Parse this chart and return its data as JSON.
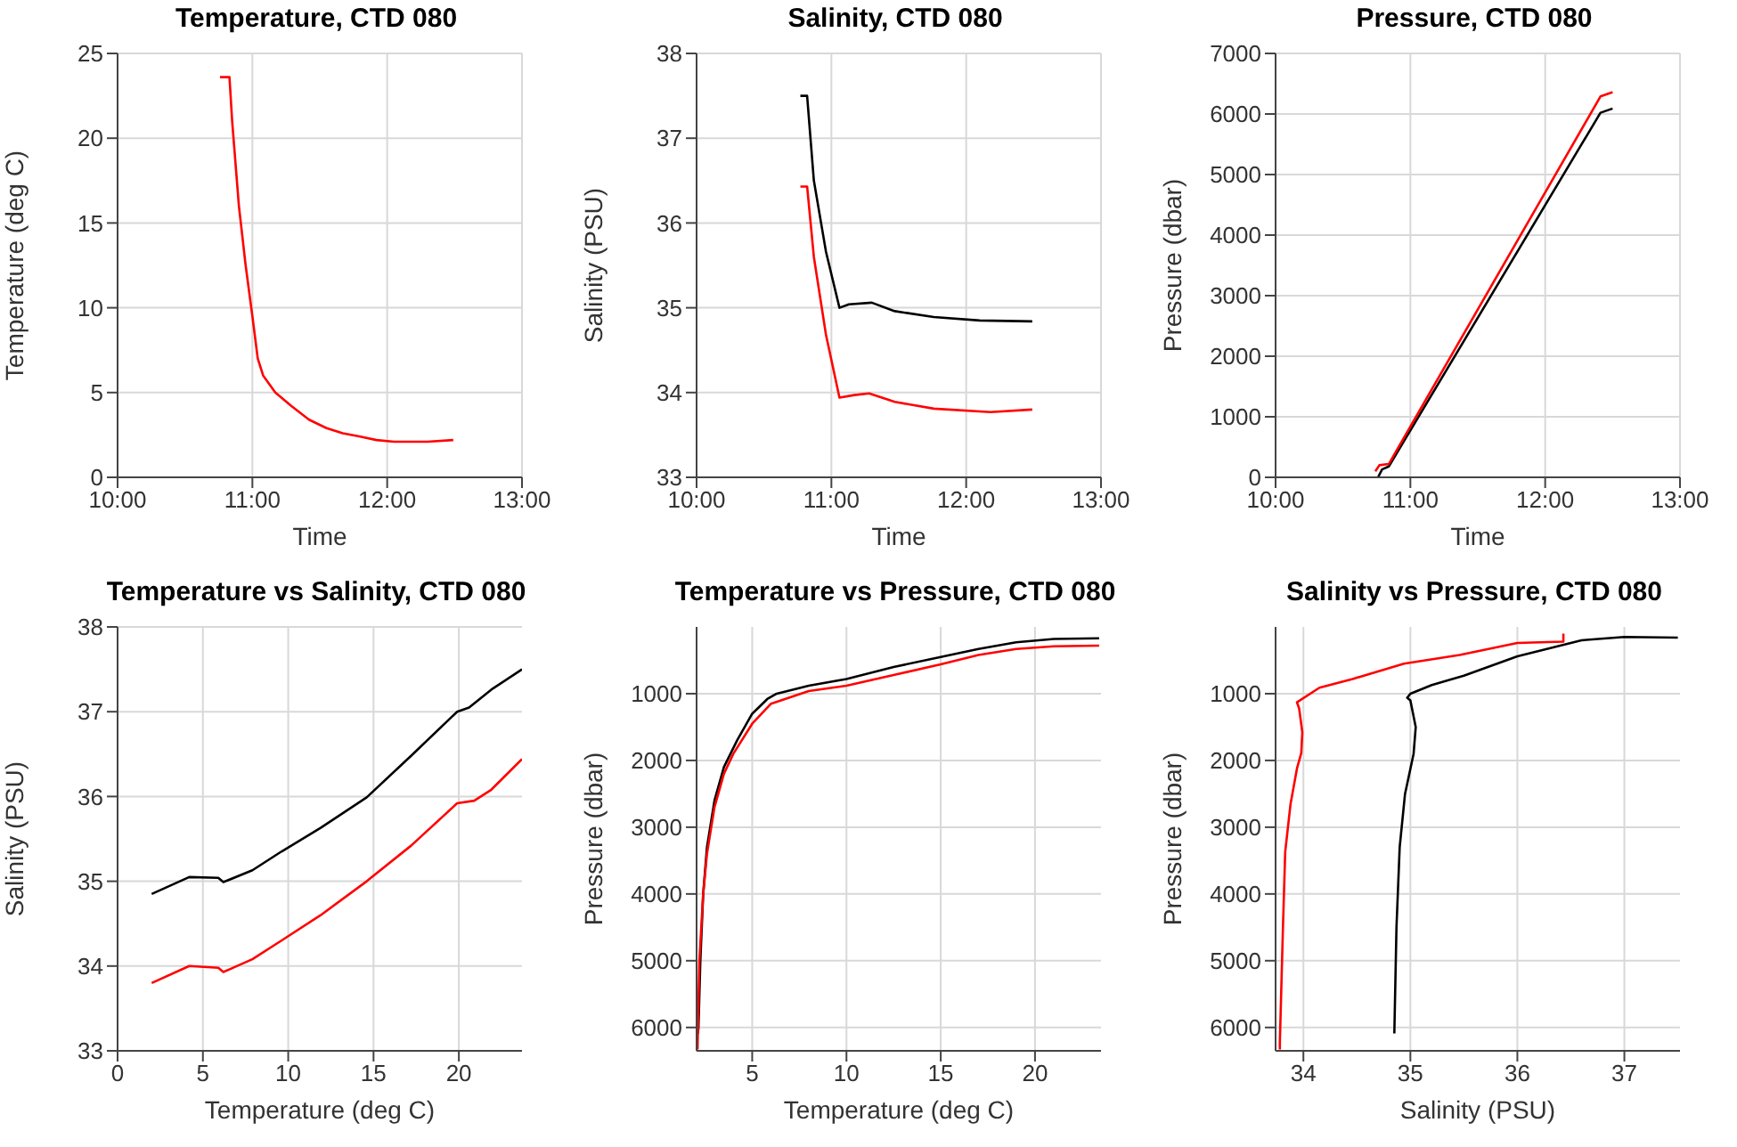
{
  "chart_data": [
    {
      "type": "line",
      "title": "Temperature, CTD 080",
      "xlabel": "Time",
      "ylabel": "Temperature (deg C)",
      "xlim": [
        10,
        13
      ],
      "xticks": [
        {
          "value": 10,
          "label": "10:00"
        },
        {
          "value": 11,
          "label": "11:00"
        },
        {
          "value": 12,
          "label": "12:00"
        },
        {
          "value": 13,
          "label": "13:00"
        }
      ],
      "ylim": [
        0,
        25
      ],
      "yticks": [
        0,
        5,
        10,
        15,
        20,
        25
      ],
      "grid": true,
      "series": [
        {
          "color": "#ff0000",
          "x": [
            10.76,
            10.83,
            10.85,
            10.9,
            10.95,
            11.0,
            11.04,
            11.08,
            11.17,
            11.29,
            11.42,
            11.55,
            11.67,
            11.8,
            11.92,
            12.05,
            12.18,
            12.3,
            12.49
          ],
          "values": [
            23.6,
            23.6,
            21,
            16,
            12.5,
            9.5,
            7,
            6,
            5,
            4.2,
            3.4,
            2.9,
            2.6,
            2.4,
            2.2,
            2.1,
            2.1,
            2.1,
            2.2
          ]
        }
      ]
    },
    {
      "type": "line",
      "title": "Salinity, CTD 080",
      "xlabel": "Time",
      "ylabel": "Salinity (PSU)",
      "xlim": [
        10,
        13
      ],
      "xticks": [
        {
          "value": 10,
          "label": "10:00"
        },
        {
          "value": 11,
          "label": "11:00"
        },
        {
          "value": 12,
          "label": "12:00"
        },
        {
          "value": 13,
          "label": "13:00"
        }
      ],
      "ylim": [
        33,
        38
      ],
      "yticks": [
        33,
        34,
        35,
        36,
        37,
        38
      ],
      "grid": true,
      "series": [
        {
          "color": "#000000",
          "x": [
            10.77,
            10.82,
            10.87,
            10.96,
            11.06,
            11.13,
            11.3,
            11.47,
            11.76,
            12.1,
            12.49
          ],
          "values": [
            37.5,
            37.5,
            36.5,
            35.66,
            35.0,
            35.04,
            35.06,
            34.96,
            34.89,
            34.85,
            34.84
          ]
        },
        {
          "color": "#ff0000",
          "x": [
            10.77,
            10.82,
            10.87,
            10.96,
            11.06,
            11.17,
            11.28,
            11.47,
            11.76,
            12.18,
            12.49
          ],
          "values": [
            36.43,
            36.43,
            35.6,
            34.68,
            33.94,
            33.97,
            33.99,
            33.89,
            33.81,
            33.77,
            33.8
          ]
        }
      ]
    },
    {
      "type": "line",
      "title": "Pressure, CTD 080",
      "xlabel": "Time",
      "ylabel": "Pressure (dbar)",
      "xlim": [
        10,
        13
      ],
      "xticks": [
        {
          "value": 10,
          "label": "10:00"
        },
        {
          "value": 11,
          "label": "11:00"
        },
        {
          "value": 12,
          "label": "12:00"
        },
        {
          "value": 13,
          "label": "13:00"
        }
      ],
      "ylim": [
        0,
        7000
      ],
      "yticks": [
        0,
        1000,
        2000,
        3000,
        4000,
        5000,
        6000,
        7000
      ],
      "grid": true,
      "series": [
        {
          "color": "#000000",
          "x": [
            10.76,
            10.79,
            10.84,
            12.41,
            12.5
          ],
          "values": [
            0,
            130,
            180,
            6020,
            6090
          ]
        },
        {
          "color": "#ff0000",
          "x": [
            10.74,
            10.77,
            10.84,
            12.41,
            12.5
          ],
          "values": [
            100,
            200,
            220,
            6290,
            6360
          ]
        }
      ]
    },
    {
      "type": "line",
      "title": "Temperature vs Salinity, CTD 080",
      "xlabel": "Temperature (deg C)",
      "ylabel": "Salinity (PSU)",
      "xlim": [
        0,
        23.7
      ],
      "xticks": [
        0,
        5,
        10,
        15,
        20
      ],
      "ylim": [
        33,
        38
      ],
      "yticks": [
        33,
        34,
        35,
        36,
        37,
        38
      ],
      "grid": true,
      "series": [
        {
          "color": "#000000",
          "x": [
            2,
            4.2,
            5.9,
            6.2,
            7.9,
            9.6,
            11.9,
            14.6,
            17.2,
            19.9,
            20.6,
            21.9,
            23.7
          ],
          "values": [
            34.85,
            35.05,
            35.04,
            34.99,
            35.13,
            35.35,
            35.63,
            35.99,
            36.48,
            37.0,
            37.05,
            37.26,
            37.5
          ]
        },
        {
          "color": "#ff0000",
          "x": [
            2,
            4.2,
            5.9,
            6.2,
            7.9,
            9.6,
            11.9,
            14.6,
            17.2,
            19.9,
            20.9,
            21.9,
            23.7
          ],
          "values": [
            33.8,
            34.0,
            33.98,
            33.93,
            34.08,
            34.3,
            34.6,
            35.0,
            35.42,
            35.92,
            35.95,
            36.08,
            36.44
          ]
        }
      ]
    },
    {
      "type": "line",
      "title": "Temperature vs Pressure, CTD 080",
      "xlabel": "Temperature (deg C)",
      "ylabel": "Pressure (dbar)",
      "xlim": [
        2.05,
        23.5
      ],
      "xticks": [
        5,
        10,
        15,
        20
      ],
      "ylim": [
        6350,
        0
      ],
      "yticks": [
        1000,
        2000,
        3000,
        4000,
        5000,
        6000
      ],
      "grid": true,
      "series": [
        {
          "color": "#000000",
          "x": [
            23.4,
            21,
            19,
            17,
            15,
            12.5,
            10,
            8,
            6.3,
            5.8,
            5,
            4.2,
            3.5,
            3,
            2.6,
            2.4,
            2.25,
            2.15,
            2.12
          ],
          "values": [
            170,
            180,
            230,
            330,
            450,
            600,
            780,
            880,
            1000,
            1080,
            1300,
            1700,
            2100,
            2600,
            3300,
            4000,
            5000,
            6000,
            6090
          ]
        },
        {
          "color": "#ff0000",
          "x": [
            23.4,
            21,
            19,
            17,
            15,
            12.5,
            10,
            8,
            6,
            5,
            4,
            3.5,
            3,
            2.6,
            2.4,
            2.2,
            2.12,
            2.1
          ],
          "values": [
            280,
            290,
            330,
            420,
            560,
            720,
            880,
            960,
            1150,
            1450,
            1900,
            2200,
            2700,
            3400,
            4000,
            5000,
            6000,
            6330
          ]
        }
      ]
    },
    {
      "type": "line",
      "title": "Salinity vs Pressure, CTD 080",
      "xlabel": "Salinity (PSU)",
      "ylabel": "Pressure (dbar)",
      "xlim": [
        33.74,
        37.52
      ],
      "xticks": [
        34,
        35,
        36,
        37
      ],
      "ylim": [
        6350,
        0
      ],
      "yticks": [
        1000,
        2000,
        3000,
        4000,
        5000,
        6000
      ],
      "grid": true,
      "series": [
        {
          "color": "#000000",
          "x": [
            37.5,
            37.0,
            36.6,
            36.0,
            35.5,
            35.2,
            35.0,
            34.97,
            35.0,
            35.05,
            35.03,
            34.95,
            34.9,
            34.87,
            34.85
          ],
          "values": [
            160,
            150,
            200,
            440,
            730,
            870,
            1000,
            1060,
            1100,
            1500,
            1900,
            2500,
            3300,
            4500,
            6090
          ]
        },
        {
          "color": "#ff0000",
          "x": [
            36.43,
            36.43,
            36.0,
            35.46,
            34.94,
            34.46,
            34.15,
            33.94,
            33.96,
            33.99,
            33.98,
            33.94,
            33.88,
            33.83,
            33.81,
            33.78,
            33.78
          ],
          "values": [
            100,
            220,
            240,
            420,
            550,
            780,
            910,
            1130,
            1220,
            1580,
            1890,
            2120,
            2650,
            3370,
            4440,
            6220,
            6330
          ]
        }
      ]
    }
  ]
}
